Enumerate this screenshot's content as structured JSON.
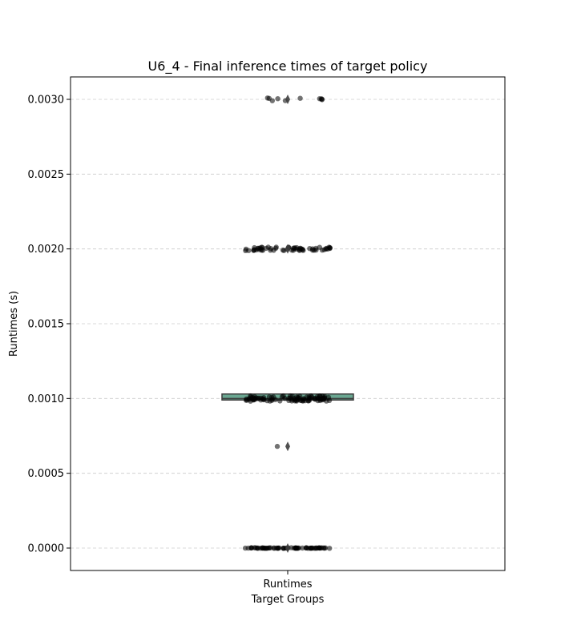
{
  "chart_data": {
    "type": "box",
    "title": "U6_4 - Final inference times of target policy",
    "xlabel": "Target Groups",
    "ylabel": "Runtimes (s)",
    "categories": [
      "Runtimes"
    ],
    "ylim": [
      -0.00015,
      0.00315
    ],
    "yticks": [
      "0.0000",
      "0.0005",
      "0.0010",
      "0.0015",
      "0.0020",
      "0.0025",
      "0.0030"
    ],
    "ytick_values": [
      0,
      0.0005,
      0.001,
      0.0015,
      0.002,
      0.0025,
      0.003
    ],
    "grid": "y, dashed",
    "box": {
      "q1": 0.00099,
      "median": 0.001,
      "q3": 0.00103,
      "whisker_low": 0.00099,
      "whisker_high": 0.00103,
      "fill_color": "#6aa791"
    },
    "outlier_diamonds": [
      0.003,
      0.002,
      0.00068,
      0.0
    ],
    "points_color": "#000000",
    "point_clusters": [
      {
        "value": 0.0,
        "count": 70,
        "spread": 2e-06
      },
      {
        "value": 0.001,
        "count": 95,
        "spread": 1.8e-05
      },
      {
        "value": 0.002,
        "count": 60,
        "spread": 1.2e-05
      },
      {
        "value": 0.003,
        "count": 10,
        "spread": 1.2e-05
      },
      {
        "value": 0.00068,
        "count": 1,
        "spread": 0
      }
    ]
  }
}
